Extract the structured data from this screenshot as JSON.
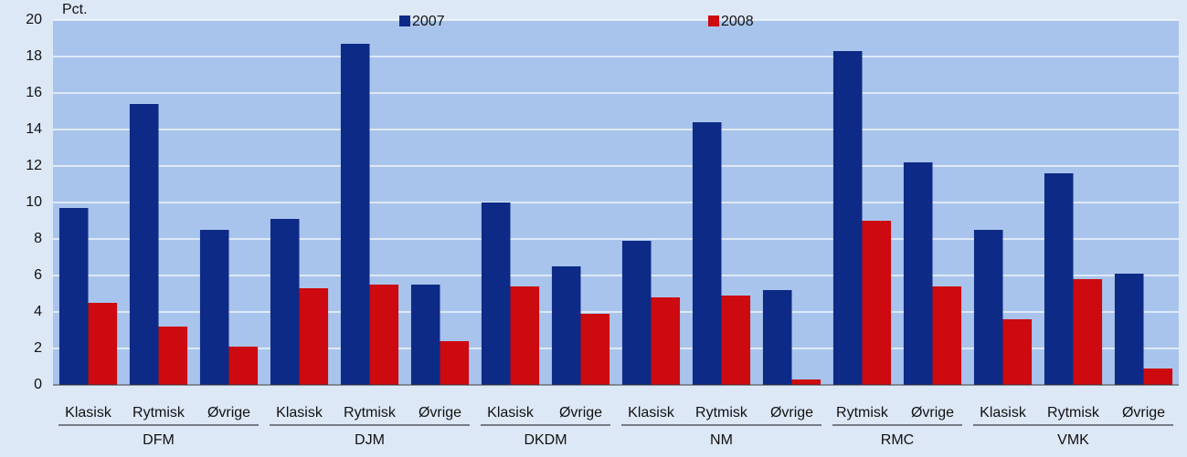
{
  "chart_data": {
    "type": "bar",
    "ylabel": "Pct.",
    "groups": [
      {
        "name": "DFM",
        "categories": [
          "Klasisk",
          "Rytmisk",
          "Øvrige"
        ]
      },
      {
        "name": "DJM",
        "categories": [
          "Klasisk",
          "Rytmisk",
          "Øvrige"
        ]
      },
      {
        "name": "DKDM",
        "categories": [
          "Klasisk",
          "Øvrige"
        ]
      },
      {
        "name": "NM",
        "categories": [
          "Klasisk",
          "Rytmisk",
          "Øvrige"
        ]
      },
      {
        "name": "RMC",
        "categories": [
          "Rytmisk",
          "Øvrige"
        ]
      },
      {
        "name": "VMK",
        "categories": [
          "Klasisk",
          "Rytmisk",
          "Øvrige"
        ]
      }
    ],
    "series": [
      {
        "name": "2007",
        "color": "#0d2a87",
        "values": [
          9.7,
          15.4,
          8.5,
          9.1,
          18.7,
          5.5,
          10.0,
          6.5,
          7.9,
          14.4,
          5.2,
          18.3,
          12.2,
          8.5,
          11.6,
          6.1
        ]
      },
      {
        "name": "2008",
        "color": "#cc0a0f",
        "values": [
          4.5,
          3.2,
          2.1,
          5.3,
          5.5,
          2.4,
          5.4,
          3.9,
          4.8,
          4.9,
          0.3,
          9.0,
          5.4,
          3.6,
          5.8,
          0.9
        ]
      }
    ],
    "ylim": [
      0,
      20
    ],
    "yticks": [
      0,
      2,
      4,
      6,
      8,
      10,
      12,
      14,
      16,
      18,
      20
    ],
    "grid": true
  }
}
